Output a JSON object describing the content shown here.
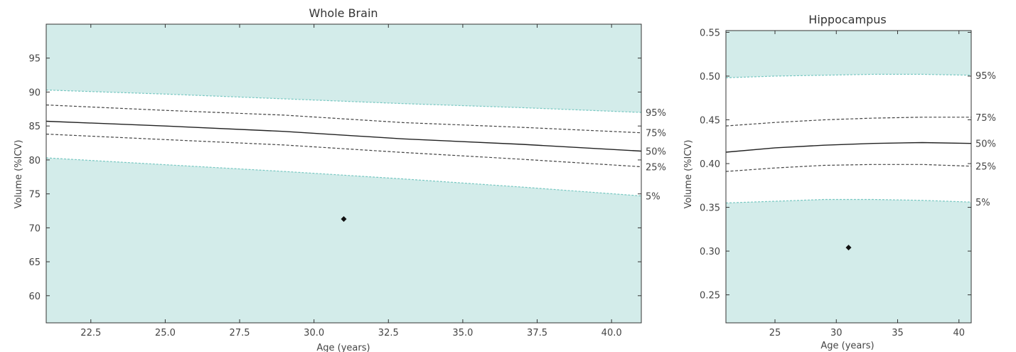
{
  "colors": {
    "band": "#d3ecea",
    "band_edge": "#78c8c2",
    "frame": "#333333",
    "median": "#222222",
    "quartile": "#444444",
    "point": "#111111"
  },
  "chart_data": [
    {
      "type": "line",
      "title": "Whole Brain",
      "xlabel": "Age (years)",
      "ylabel": "Volume (%ICV)",
      "xlim": [
        21.0,
        41.0
      ],
      "ylim": [
        56.0,
        100.0
      ],
      "xticks": [
        22.5,
        25.0,
        27.5,
        30.0,
        32.5,
        35.0,
        37.5,
        40.0
      ],
      "yticks": [
        60,
        65,
        70,
        75,
        80,
        85,
        90,
        95
      ],
      "x": [
        21,
        25,
        29,
        33,
        37,
        41
      ],
      "series": [
        {
          "name": "95%",
          "values": [
            90.3,
            89.7,
            89.0,
            88.3,
            87.7,
            87.0
          ],
          "style": "band-edge"
        },
        {
          "name": "75%",
          "values": [
            88.1,
            87.3,
            86.6,
            85.5,
            84.8,
            84.0
          ],
          "style": "dashed"
        },
        {
          "name": "50%",
          "values": [
            85.7,
            85.0,
            84.2,
            83.1,
            82.3,
            81.3
          ],
          "style": "solid"
        },
        {
          "name": "25%",
          "values": [
            83.8,
            83.0,
            82.2,
            81.1,
            80.1,
            79.0
          ],
          "style": "dashed"
        },
        {
          "name": "5%",
          "values": [
            80.3,
            79.3,
            78.3,
            77.2,
            76.0,
            74.7
          ],
          "style": "band-edge"
        }
      ],
      "points": [
        {
          "x": 31.0,
          "y": 71.3
        }
      ]
    },
    {
      "type": "line",
      "title": "Hippocampus",
      "xlabel": "Age (years)",
      "ylabel": "Volume (%ICV)",
      "xlim": [
        21.0,
        41.0
      ],
      "ylim": [
        0.218,
        0.552
      ],
      "xticks": [
        25,
        30,
        35,
        40
      ],
      "yticks": [
        0.25,
        0.3,
        0.35,
        0.4,
        0.45,
        0.5,
        0.55
      ],
      "ytick_labels": [
        "0.25",
        "0.30",
        "0.35",
        "0.40",
        "0.45",
        "0.50",
        "0.55"
      ],
      "x": [
        21,
        25,
        29,
        33,
        37,
        41
      ],
      "series": [
        {
          "name": "95%",
          "values": [
            0.498,
            0.5,
            0.501,
            0.502,
            0.502,
            0.501
          ],
          "style": "band-edge"
        },
        {
          "name": "75%",
          "values": [
            0.443,
            0.447,
            0.45,
            0.452,
            0.453,
            0.453
          ],
          "style": "dashed"
        },
        {
          "name": "50%",
          "values": [
            0.413,
            0.418,
            0.421,
            0.423,
            0.424,
            0.423
          ],
          "style": "solid"
        },
        {
          "name": "25%",
          "values": [
            0.391,
            0.395,
            0.398,
            0.399,
            0.399,
            0.397
          ],
          "style": "dashed"
        },
        {
          "name": "5%",
          "values": [
            0.355,
            0.357,
            0.359,
            0.359,
            0.358,
            0.356
          ],
          "style": "band-edge"
        }
      ],
      "points": [
        {
          "x": 31.0,
          "y": 0.304
        }
      ]
    }
  ]
}
